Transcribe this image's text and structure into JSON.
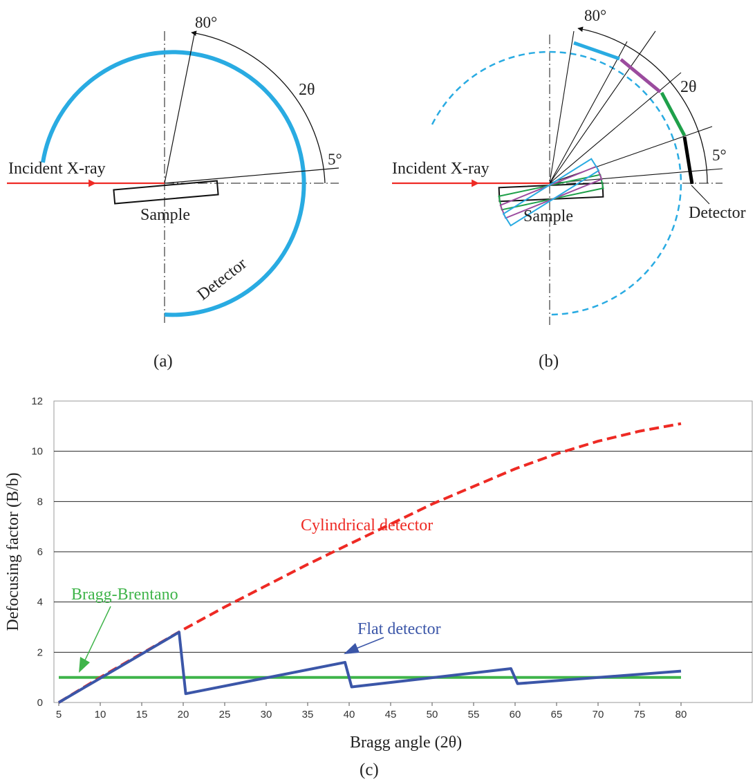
{
  "diagram_a": {
    "angle_top": "80°",
    "angle_low": "5°",
    "angle_label": "2θ",
    "incident_label": "Incident X-ray",
    "sample_label": "Sample",
    "detector_label": "Detector",
    "panel_label": "(a)",
    "detector_color": "#29abe2",
    "beam_color": "#ee2a24"
  },
  "diagram_b": {
    "angle_top": "80°",
    "angle_low": "5°",
    "angle_label": "2θ",
    "incident_label": "Incident X-ray",
    "sample_label": "Sample",
    "detector_label": "Detector",
    "panel_label": "(b)",
    "segment_colors": [
      "#000000",
      "#1fa04a",
      "#9b4b9e",
      "#29abe2"
    ]
  },
  "panel_c_label": "(c)",
  "chart_data": {
    "type": "line",
    "title": "",
    "xlabel": "Bragg angle (2θ)",
    "ylabel": "Defocusing factor (B/b)",
    "xlim": [
      5,
      80
    ],
    "ylim": [
      0,
      12
    ],
    "xticks": [
      5,
      10,
      15,
      20,
      25,
      30,
      35,
      40,
      45,
      50,
      55,
      60,
      65,
      70,
      75,
      80
    ],
    "yticks": [
      0,
      2,
      4,
      6,
      8,
      10,
      12
    ],
    "grid": true,
    "series": [
      {
        "name": "Cylindrical detector",
        "color": "#ee2a24",
        "style": "dashed",
        "x": [
          5,
          10,
          15,
          20,
          25,
          30,
          35,
          40,
          45,
          50,
          55,
          60,
          65,
          70,
          75,
          80
        ],
        "y": [
          0,
          1.0,
          1.95,
          2.9,
          3.8,
          4.65,
          5.5,
          6.3,
          7.1,
          7.9,
          8.6,
          9.3,
          9.9,
          10.4,
          10.8,
          11.1
        ]
      },
      {
        "name": "Bragg-Brentano",
        "color": "#3fb44a",
        "style": "solid",
        "x": [
          5,
          80
        ],
        "y": [
          1,
          1
        ]
      },
      {
        "name": "Flat detector",
        "color": "#3b56a8",
        "style": "solid",
        "x": [
          5,
          19.5,
          20.3,
          39.5,
          40.3,
          59.5,
          60.3,
          80
        ],
        "y": [
          0,
          2.8,
          0.35,
          1.6,
          0.62,
          1.35,
          0.75,
          1.25
        ]
      }
    ]
  }
}
